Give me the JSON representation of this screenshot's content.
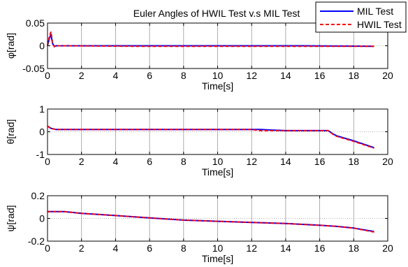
{
  "chart_data": [
    {
      "type": "line",
      "title": "Euler Angles of HWIL Test v.s MIL Test",
      "xlabel": "Time[s]",
      "ylabel": "φ[rad]",
      "xlim": [
        0,
        20
      ],
      "ylim": [
        -0.05,
        0.05
      ],
      "xticks": [
        0,
        2,
        4,
        6,
        8,
        10,
        12,
        14,
        16,
        18,
        20
      ],
      "yticks": [
        -0.05,
        0,
        0.05
      ],
      "ytick_labels": [
        "-0.05",
        "0",
        "0.05"
      ],
      "grid": true,
      "legend": {
        "placement": "top-right",
        "entries": [
          "MIL Test",
          "HWIL Test"
        ]
      },
      "series": [
        {
          "name": "MIL Test",
          "color": "#0000ff",
          "style": "solid",
          "x": [
            0,
            0.1,
            0.2,
            0.3,
            0.4,
            0.5,
            1,
            5,
            10,
            15,
            19.2
          ],
          "y": [
            0,
            0.015,
            0.025,
            0.005,
            -0.001,
            0,
            0,
            0,
            0,
            0,
            -0.001
          ]
        },
        {
          "name": "HWIL Test",
          "color": "#ff0000",
          "style": "dashed",
          "x": [
            0,
            0.1,
            0.2,
            0.3,
            0.4,
            0.5,
            1,
            5,
            10,
            15,
            19.2
          ],
          "y": [
            0,
            0.018,
            0.031,
            0.007,
            -0.002,
            0,
            0,
            -0.001,
            -0.001,
            -0.001,
            -0.001
          ]
        }
      ]
    },
    {
      "type": "line",
      "xlabel": "Time[s]",
      "ylabel": "θ[rad]",
      "xlim": [
        0,
        20
      ],
      "ylim": [
        -1,
        1
      ],
      "xticks": [
        0,
        2,
        4,
        6,
        8,
        10,
        12,
        14,
        16,
        18,
        20
      ],
      "yticks": [
        -1,
        0,
        1
      ],
      "ytick_labels": [
        "-1",
        "0",
        "1"
      ],
      "grid": true,
      "series": [
        {
          "name": "MIL Test",
          "color": "#0000ff",
          "style": "solid",
          "x": [
            0,
            0.2,
            0.5,
            1,
            5,
            10,
            12.5,
            13,
            14,
            16.5,
            16.8,
            17,
            18,
            19.2
          ],
          "y": [
            0.25,
            0.15,
            0.1,
            0.1,
            0.1,
            0.1,
            0.1,
            0.08,
            0.05,
            0.05,
            -0.1,
            -0.18,
            -0.4,
            -0.7
          ]
        },
        {
          "name": "HWIL Test",
          "color": "#ff0000",
          "style": "dashed",
          "x": [
            0,
            0.2,
            0.5,
            1,
            5,
            10,
            12,
            12.5,
            14,
            16.5,
            16.8,
            17,
            18,
            19.2
          ],
          "y": [
            0.25,
            0.15,
            0.1,
            0.1,
            0.1,
            0.1,
            0.1,
            0.05,
            0.05,
            0.05,
            -0.12,
            -0.2,
            -0.42,
            -0.72
          ]
        }
      ]
    },
    {
      "type": "line",
      "xlabel": "Time[s]",
      "ylabel": "ψ[rad]",
      "xlim": [
        0,
        20
      ],
      "ylim": [
        -0.2,
        0.2
      ],
      "xticks": [
        0,
        2,
        4,
        6,
        8,
        10,
        12,
        14,
        16,
        18,
        20
      ],
      "yticks": [
        -0.2,
        0,
        0.2
      ],
      "ytick_labels": [
        "-0.2",
        "0",
        "0.2"
      ],
      "grid": true,
      "series": [
        {
          "name": "MIL Test",
          "color": "#0000ff",
          "style": "solid",
          "x": [
            0,
            1,
            2,
            4,
            6,
            8,
            10,
            12,
            14,
            16,
            17,
            18,
            19.2
          ],
          "y": [
            0.06,
            0.06,
            0.045,
            0.025,
            0.005,
            -0.015,
            -0.025,
            -0.035,
            -0.045,
            -0.06,
            -0.07,
            -0.085,
            -0.115
          ]
        },
        {
          "name": "HWIL Test",
          "color": "#ff0000",
          "style": "dashed",
          "x": [
            0,
            1,
            2,
            4,
            6,
            8,
            10,
            12,
            14,
            16,
            17,
            18,
            19.2
          ],
          "y": [
            0.06,
            0.06,
            0.045,
            0.025,
            0.005,
            -0.015,
            -0.025,
            -0.035,
            -0.045,
            -0.06,
            -0.07,
            -0.085,
            -0.12
          ]
        }
      ]
    }
  ]
}
